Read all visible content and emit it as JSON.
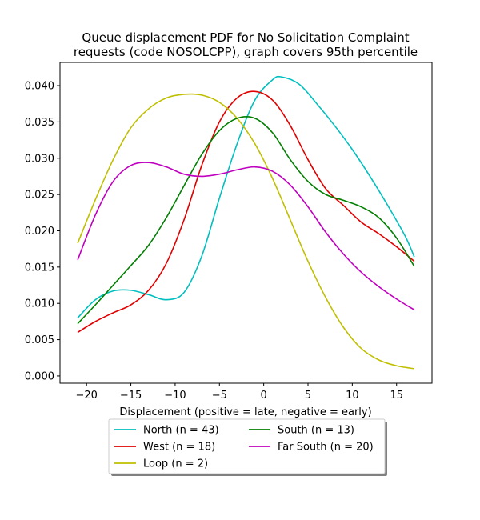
{
  "chart_data": {
    "type": "line",
    "title_lines": [
      "Queue displacement PDF for No Solicitation Complaint",
      "requests (code NOSOLCPP), graph covers 95th percentile"
    ],
    "xlabel": "Displacement (positive = late, negative = early)",
    "ylabel": "",
    "xlim": [
      -23,
      19
    ],
    "ylim": [
      -0.001,
      0.0432
    ],
    "xticks": [
      -20,
      -15,
      -10,
      -5,
      0,
      5,
      10,
      15
    ],
    "xtick_labels": [
      "−20",
      "−15",
      "−10",
      "−5",
      "0",
      "5",
      "10",
      "15"
    ],
    "yticks": [
      0.0,
      0.005,
      0.01,
      0.015,
      0.02,
      0.025,
      0.03,
      0.035,
      0.04
    ],
    "ytick_labels": [
      "0.000",
      "0.005",
      "0.010",
      "0.015",
      "0.020",
      "0.025",
      "0.030",
      "0.035",
      "0.040"
    ],
    "grid": false,
    "legend_position": "below",
    "legend_columns": 2,
    "series": [
      {
        "name": "North (n = 43)",
        "color": "#00bfbf",
        "points": [
          [
            -21,
            0.008
          ],
          [
            -19,
            0.0105
          ],
          [
            -17,
            0.0117
          ],
          [
            -15,
            0.0118
          ],
          [
            -13,
            0.0112
          ],
          [
            -11,
            0.0105
          ],
          [
            -9,
            0.0115
          ],
          [
            -7,
            0.0165
          ],
          [
            -5,
            0.0245
          ],
          [
            -3,
            0.032
          ],
          [
            -1,
            0.038
          ],
          [
            1,
            0.0408
          ],
          [
            2,
            0.0412
          ],
          [
            4,
            0.0402
          ],
          [
            6,
            0.0375
          ],
          [
            8,
            0.0345
          ],
          [
            10,
            0.0312
          ],
          [
            12,
            0.0275
          ],
          [
            14,
            0.0235
          ],
          [
            16,
            0.0192
          ],
          [
            17,
            0.0164
          ]
        ]
      },
      {
        "name": "West (n = 18)",
        "color": "#e00000",
        "points": [
          [
            -21,
            0.006
          ],
          [
            -19,
            0.0075
          ],
          [
            -17,
            0.0087
          ],
          [
            -15,
            0.0098
          ],
          [
            -13,
            0.0118
          ],
          [
            -11,
            0.0155
          ],
          [
            -9,
            0.0215
          ],
          [
            -7,
            0.029
          ],
          [
            -5,
            0.035
          ],
          [
            -3,
            0.0383
          ],
          [
            -1,
            0.0392
          ],
          [
            1,
            0.038
          ],
          [
            3,
            0.0345
          ],
          [
            5,
            0.0298
          ],
          [
            7,
            0.0258
          ],
          [
            9,
            0.0235
          ],
          [
            11,
            0.0212
          ],
          [
            13,
            0.0196
          ],
          [
            15,
            0.0178
          ],
          [
            17,
            0.0158
          ]
        ]
      },
      {
        "name": "Loop (n = 2)",
        "color": "#bfbf00",
        "points": [
          [
            -21,
            0.0183
          ],
          [
            -19,
            0.0243
          ],
          [
            -17,
            0.0298
          ],
          [
            -15,
            0.0342
          ],
          [
            -13,
            0.0368
          ],
          [
            -11,
            0.0383
          ],
          [
            -9,
            0.0388
          ],
          [
            -7,
            0.0387
          ],
          [
            -5,
            0.0377
          ],
          [
            -3,
            0.0355
          ],
          [
            -1,
            0.032
          ],
          [
            1,
            0.0272
          ],
          [
            3,
            0.0215
          ],
          [
            5,
            0.0158
          ],
          [
            7,
            0.0108
          ],
          [
            9,
            0.0067
          ],
          [
            11,
            0.0038
          ],
          [
            13,
            0.0022
          ],
          [
            15,
            0.0014
          ],
          [
            17,
            0.001
          ]
        ]
      },
      {
        "name": "South (n = 13)",
        "color": "#007f00",
        "points": [
          [
            -21,
            0.0072
          ],
          [
            -19,
            0.0098
          ],
          [
            -17,
            0.0125
          ],
          [
            -15,
            0.0152
          ],
          [
            -13,
            0.018
          ],
          [
            -11,
            0.0218
          ],
          [
            -9,
            0.0262
          ],
          [
            -7,
            0.0305
          ],
          [
            -5,
            0.0338
          ],
          [
            -3,
            0.0355
          ],
          [
            -1,
            0.0355
          ],
          [
            1,
            0.0335
          ],
          [
            3,
            0.0298
          ],
          [
            5,
            0.0268
          ],
          [
            7,
            0.025
          ],
          [
            9,
            0.0242
          ],
          [
            11,
            0.0233
          ],
          [
            13,
            0.0218
          ],
          [
            15,
            0.019
          ],
          [
            17,
            0.0151
          ]
        ]
      },
      {
        "name": "Far South (n = 20)",
        "color": "#bf00bf",
        "points": [
          [
            -21,
            0.016
          ],
          [
            -19,
            0.0222
          ],
          [
            -17,
            0.0268
          ],
          [
            -15,
            0.029
          ],
          [
            -13,
            0.0294
          ],
          [
            -11,
            0.0288
          ],
          [
            -9,
            0.0278
          ],
          [
            -7,
            0.0275
          ],
          [
            -5,
            0.0278
          ],
          [
            -3,
            0.0284
          ],
          [
            -1,
            0.0288
          ],
          [
            1,
            0.0282
          ],
          [
            3,
            0.0263
          ],
          [
            5,
            0.0233
          ],
          [
            7,
            0.0198
          ],
          [
            9,
            0.0168
          ],
          [
            11,
            0.0143
          ],
          [
            13,
            0.0123
          ],
          [
            15,
            0.0106
          ],
          [
            17,
            0.0091
          ]
        ]
      }
    ]
  }
}
